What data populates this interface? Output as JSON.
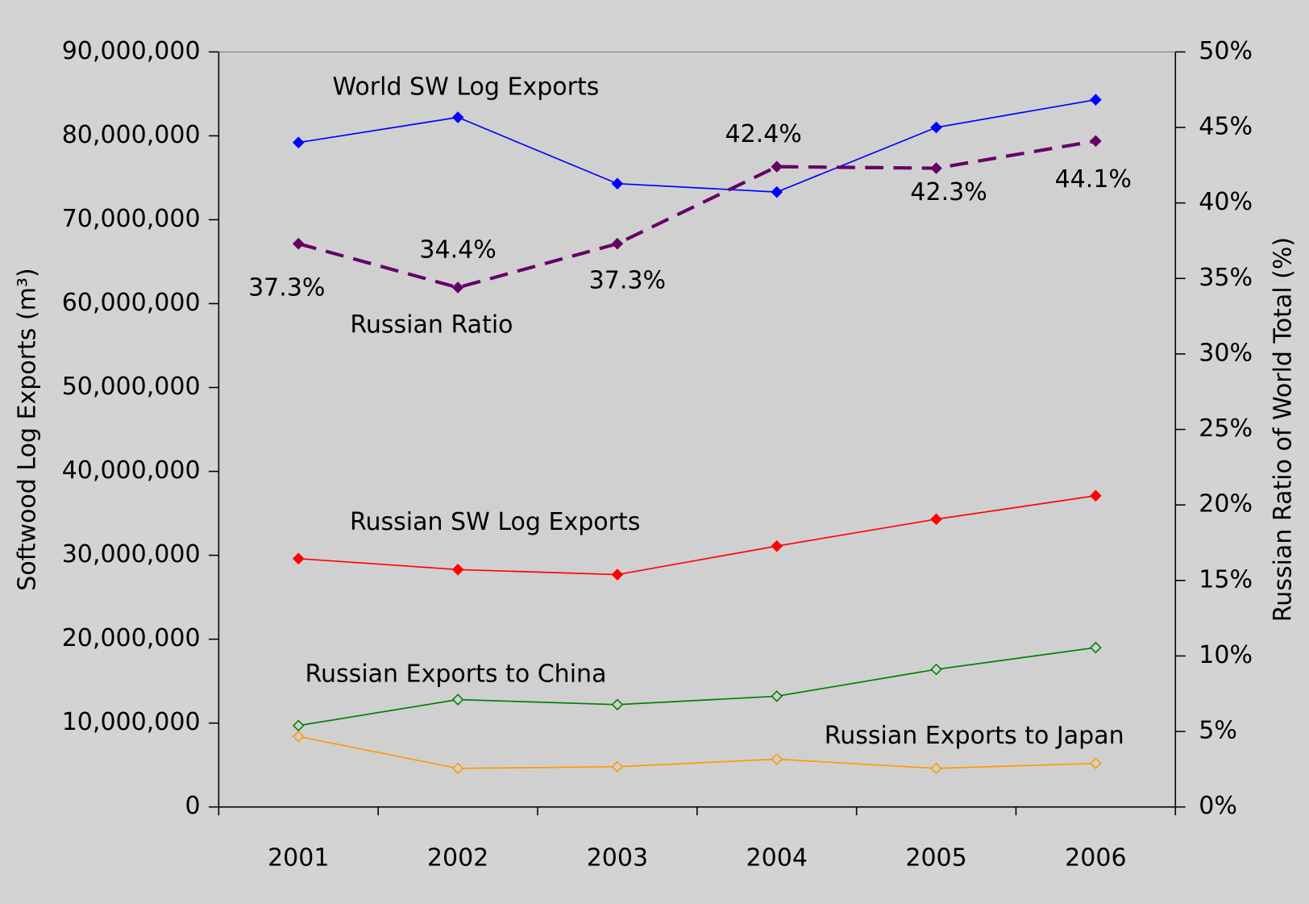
{
  "chart_data": {
    "type": "line",
    "categories": [
      "2001",
      "2002",
      "2003",
      "2004",
      "2005",
      "2006"
    ],
    "ylabel": "Softwood Log Exports (m³)",
    "y2label": "Russian Ratio of World Total (%)",
    "ylim": [
      0,
      90000000
    ],
    "yticks": [
      {
        "value": 0,
        "label": "0"
      },
      {
        "value": 10000000,
        "label": "10,000,000"
      },
      {
        "value": 20000000,
        "label": "20,000,000"
      },
      {
        "value": 30000000,
        "label": "30,000,000"
      },
      {
        "value": 40000000,
        "label": "40,000,000"
      },
      {
        "value": 50000000,
        "label": "50,000,000"
      },
      {
        "value": 60000000,
        "label": "60,000,000"
      },
      {
        "value": 70000000,
        "label": "70,000,000"
      },
      {
        "value": 80000000,
        "label": "80,000,000"
      },
      {
        "value": 90000000,
        "label": "90,000,000"
      }
    ],
    "y2lim": [
      0,
      50
    ],
    "y2ticks": [
      {
        "value": 0,
        "label": "0%"
      },
      {
        "value": 5,
        "label": "5%"
      },
      {
        "value": 10,
        "label": "10%"
      },
      {
        "value": 15,
        "label": "15%"
      },
      {
        "value": 20,
        "label": "20%"
      },
      {
        "value": 25,
        "label": "25%"
      },
      {
        "value": 30,
        "label": "30%"
      },
      {
        "value": 35,
        "label": "35%"
      },
      {
        "value": 40,
        "label": "40%"
      },
      {
        "value": 45,
        "label": "45%"
      },
      {
        "value": 50,
        "label": "50%"
      }
    ],
    "series": [
      {
        "name": "World SW Log Exports",
        "color": "#0000ff",
        "filled": true,
        "dash": false,
        "values": [
          79200000,
          82200000,
          74300000,
          73300000,
          81000000,
          84300000
        ]
      },
      {
        "name": "Russian Ratio",
        "color": "#660066",
        "filled": true,
        "dash": true,
        "axis": "y2",
        "values": [
          37.3,
          34.4,
          37.3,
          42.4,
          42.3,
          44.1
        ],
        "value_labels": [
          "37.3%",
          "34.4%",
          "37.3%",
          "42.4%",
          "42.3%",
          "44.1%"
        ]
      },
      {
        "name": "Russian SW Log Exports",
        "color": "#ff0000",
        "filled": true,
        "dash": false,
        "values": [
          29600000,
          28300000,
          27700000,
          31100000,
          34300000,
          37100000
        ]
      },
      {
        "name": "Russian Exports to China",
        "color": "#008000",
        "filled": false,
        "dash": false,
        "values": [
          9700000,
          12800000,
          12200000,
          13200000,
          16400000,
          19000000
        ]
      },
      {
        "name": "Russian Exports to Japan",
        "color": "#ff9900",
        "filled": false,
        "dash": false,
        "values": [
          8400000,
          4600000,
          4800000,
          5700000,
          4600000,
          5200000
        ]
      }
    ]
  }
}
